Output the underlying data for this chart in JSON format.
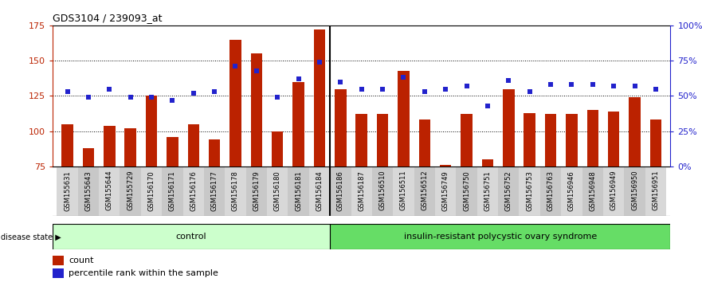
{
  "title": "GDS3104 / 239093_at",
  "samples": [
    "GSM155631",
    "GSM155643",
    "GSM155644",
    "GSM155729",
    "GSM156170",
    "GSM156171",
    "GSM156176",
    "GSM156177",
    "GSM156178",
    "GSM156179",
    "GSM156180",
    "GSM156181",
    "GSM156184",
    "GSM156186",
    "GSM156187",
    "GSM156510",
    "GSM156511",
    "GSM156512",
    "GSM156749",
    "GSM156750",
    "GSM156751",
    "GSM156752",
    "GSM156753",
    "GSM156763",
    "GSM156946",
    "GSM156948",
    "GSM156949",
    "GSM156950",
    "GSM156951"
  ],
  "bar_values": [
    105,
    88,
    104,
    102,
    125,
    96,
    105,
    94,
    165,
    155,
    100,
    135,
    172,
    130,
    112,
    112,
    143,
    108,
    76,
    112,
    80,
    130,
    113,
    112,
    112,
    115,
    114,
    124,
    108
  ],
  "blue_pct": [
    53,
    49,
    55,
    49,
    49,
    47,
    52,
    53,
    71,
    68,
    49,
    62,
    74,
    60,
    55,
    55,
    63,
    53,
    55,
    57,
    43,
    61,
    53,
    58,
    58,
    58,
    57,
    57,
    55
  ],
  "n_control": 13,
  "ylim_left": [
    75,
    175
  ],
  "ylim_right": [
    0,
    100
  ],
  "yticks_left": [
    75,
    100,
    125,
    150,
    175
  ],
  "ytick_labels_left": [
    "75",
    "100",
    "125",
    "150",
    "175"
  ],
  "yticks_right": [
    0,
    25,
    50,
    75,
    100
  ],
  "ytick_labels_right": [
    "0%",
    "25%",
    "50%",
    "75%",
    "100%"
  ],
  "bar_color": "#bb2200",
  "blue_color": "#2222cc",
  "ctrl_light": "#ccffcc",
  "ctrl_dark": "#44cc44",
  "dis_light": "#66dd66",
  "dis_dark": "#33bb33",
  "tick_bg_even": "#d8d8d8",
  "tick_bg_odd": "#c8c8c8",
  "background_color": "#ffffff",
  "control_label": "control",
  "disease_label": "insulin-resistant polycystic ovary syndrome",
  "legend_count": "count",
  "legend_percentile": "percentile rank within the sample"
}
